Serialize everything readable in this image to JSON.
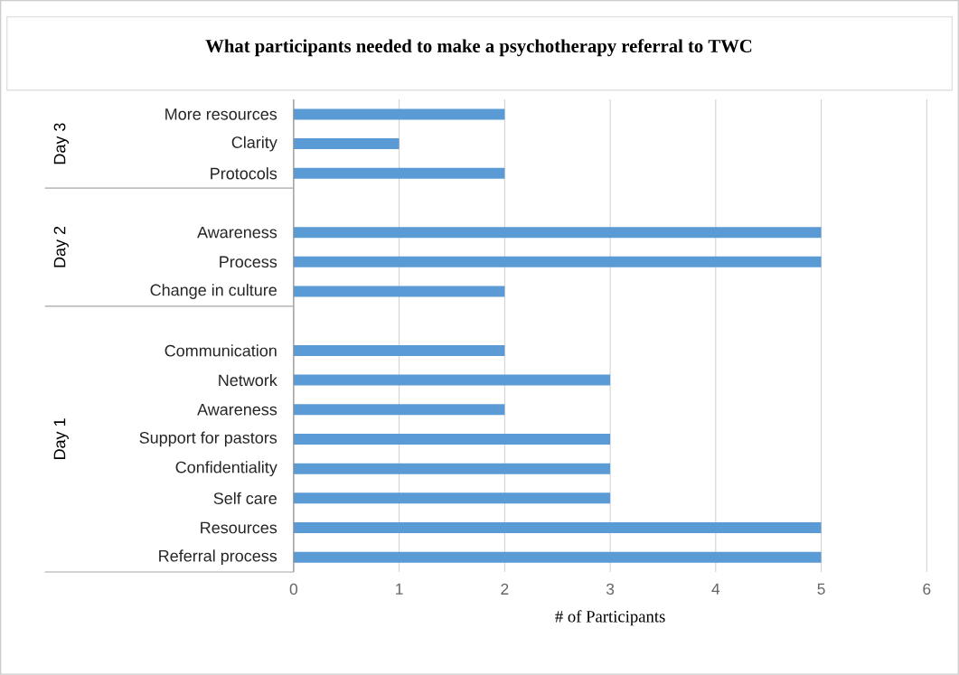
{
  "chart_data": {
    "type": "bar",
    "orientation": "horizontal",
    "title": "What participants needed to make a psychotherapy referral to TWC",
    "xlabel": "# of Participants",
    "categories": [
      "More resources",
      "Clarity",
      "Protocols",
      null,
      "Awareness",
      "Process",
      "Change in culture",
      null,
      "Communication",
      "Network",
      "Awareness",
      "Support for pastors",
      "Confidentiality",
      "Self care",
      "Resources",
      "Referral process"
    ],
    "values": [
      2,
      1,
      2,
      null,
      5,
      5,
      2,
      null,
      2,
      3,
      2,
      3,
      3,
      3,
      5,
      5
    ],
    "color": "#5b9bd5",
    "xlim": [
      0,
      6
    ],
    "xticks": [
      0,
      1,
      2,
      3,
      4,
      5,
      6
    ],
    "grid": "x",
    "annotations": [
      "Day 3",
      "Day 2",
      "Day 1"
    ]
  }
}
